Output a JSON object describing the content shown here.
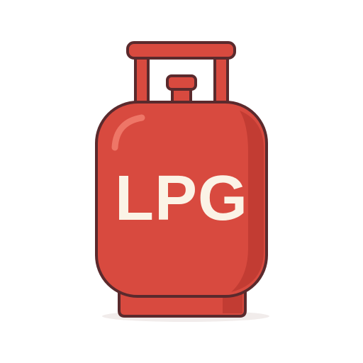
{
  "icon": {
    "name": "lpg-gas-cylinder-icon",
    "label": "LPG"
  },
  "colors": {
    "background": "#ffffff",
    "body_red": "#d84a3f",
    "body_shadow": "#c23c33",
    "outline": "#5a2a2d",
    "label": "#fbf3e6",
    "highlight": "#ee7667"
  }
}
